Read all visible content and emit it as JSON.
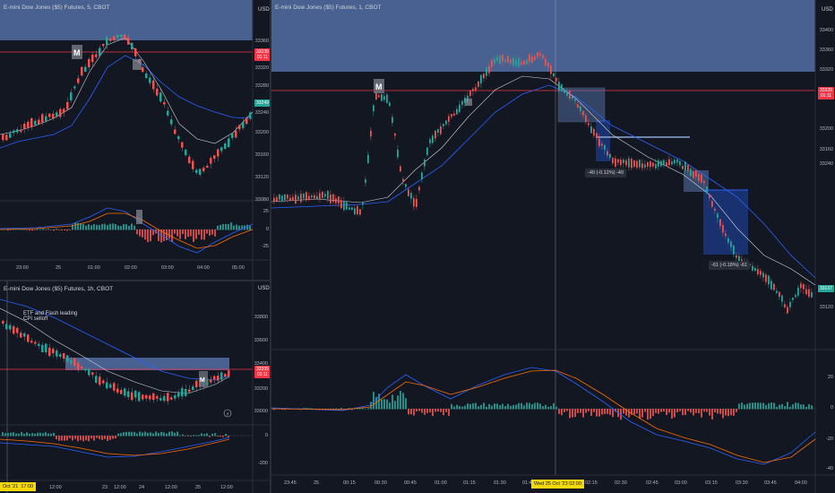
{
  "currency": "USD",
  "top_left": {
    "title": "E-mini Dow Jones ($5) Futures, 5, CBOT",
    "price_ticks": [
      "33360",
      "33320",
      "33280",
      "33240",
      "33200",
      "33160",
      "33120",
      "33080"
    ],
    "price_badge": [
      "33339",
      "01:11"
    ],
    "price_badge_2": "33249",
    "macd_ticks": [
      "25",
      "0",
      "-25"
    ],
    "time_ticks": [
      "23:00",
      "25",
      "01:00",
      "02:00",
      "03:00",
      "04:00",
      "05:00"
    ]
  },
  "bottom_left": {
    "title": "E-mini Dow Jones ($5) Futures, 1h, CBOT",
    "price_ticks": [
      "33800",
      "33600",
      "33400",
      "33200",
      "33000"
    ],
    "price_badge": [
      "33339",
      "01:11"
    ],
    "note_lines": [
      "ETF and Flash leading",
      "CPI selloff"
    ],
    "macd_ticks": [
      "0",
      "-200"
    ],
    "time_ticks": [
      "Oct '21",
      "17:00",
      "12:00",
      "23",
      "12:00",
      "24",
      "12:00",
      "25",
      "12:00"
    ]
  },
  "main": {
    "title": "E-mini Dow Jones ($5) Futures, 1, CBOT",
    "price_ticks": [
      "33400",
      "33360",
      "33320",
      "33280",
      "33240",
      "33200",
      "33160",
      "33120"
    ],
    "price_badge": [
      "33339",
      "01:11"
    ],
    "price_badge_2": "33137",
    "macd_ticks": [
      "20",
      "0",
      "-20",
      "-40"
    ],
    "time_ticks": [
      "23:45",
      "25",
      "00:15",
      "00:30",
      "00:45",
      "01:00",
      "01:15",
      "01:30",
      "01:45",
      "02:00",
      "02:15",
      "02:30",
      "02:45",
      "03:00",
      "03:15",
      "03:30",
      "03:45",
      "04:00"
    ],
    "crosshair_label": "Wed 25 Oct '23   02:00",
    "annotation_1": "-40 (-0.12%) -40",
    "annotation_2": "-61 (-0.18%) -61"
  },
  "colors": {
    "bg": "#131722",
    "up": "#26a69a",
    "down": "#ef5350",
    "zone": "#5b7bb5",
    "ema_blue": "#2962ff",
    "ema_white": "#d1d4dc",
    "macd_orange": "#ff6d00"
  },
  "icons": [
    "m-marker-icon",
    "lightning-icon"
  ]
}
